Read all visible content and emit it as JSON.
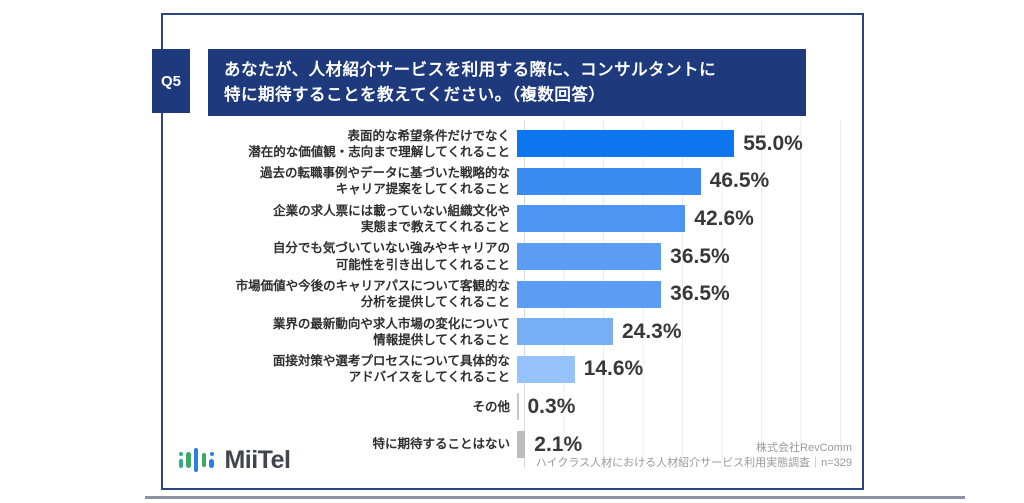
{
  "header": {
    "question_number": "Q5",
    "title_lines": [
      "あなたが、人材紹介サービスを利用する際に、コンサルタントに",
      "特に期待することを教えてください。（複数回答）"
    ]
  },
  "chart_data": {
    "type": "bar",
    "orientation": "horizontal",
    "title": "あなたが、人材紹介サービスを利用する際に、コンサルタントに特に期待することを教えてください。（複数回答）",
    "unit": "%",
    "xlim": [
      0,
      86
    ],
    "gridline_step_pct": 10,
    "grid": true,
    "categories": [
      [
        "表面的な希望条件だけでなく",
        "潜在的な価値観・志向まで理解してくれること"
      ],
      [
        "過去の転職事例やデータに基づいた戦略的な",
        "キャリア提案をしてくれること"
      ],
      [
        "企業の求人票には載っていない組織文化や",
        "実態まで教えてくれること"
      ],
      [
        "自分でも気づいていない強みやキャリアの",
        "可能性を引き出してくれること"
      ],
      [
        "市場価値や今後のキャリアパスについて客観的な",
        "分析を提供してくれること"
      ],
      [
        "業界の最新動向や求人市場の変化について",
        "情報提供してくれること"
      ],
      [
        "面接対策や選考プロセスについて具体的な",
        "アドバイスをしてくれること"
      ],
      [
        "その他"
      ],
      [
        "特に期待することはない"
      ]
    ],
    "values": [
      55.0,
      46.5,
      42.6,
      36.5,
      36.5,
      24.3,
      14.6,
      0.3,
      2.1
    ],
    "value_labels": [
      "55.0%",
      "46.5%",
      "42.6%",
      "36.5%",
      "36.5%",
      "24.3%",
      "14.6%",
      "0.3%",
      "2.1%"
    ],
    "bar_colors": [
      "#0d76ee",
      "#3c8bf1",
      "#4d95f3",
      "#5b9df4",
      "#5b9df4",
      "#78aef6",
      "#95c2f8",
      "#c6c6c6",
      "#bdbdbd"
    ]
  },
  "footer": {
    "logo_text": "MiiTel",
    "source_company": "株式会社RevComm",
    "source_survey": "ハイクラス人材における人材紹介サービス利用実態調査｜n=329"
  },
  "colors": {
    "navy": "#1e3a7d",
    "value_text": "#383838",
    "label_text": "#2e2e2e",
    "source_text": "#9a9a9a",
    "grid_line": "#ededed",
    "logo_teal": "#2fae8f",
    "logo_green": "#3fa862",
    "logo_blue": "#2e7de2"
  }
}
